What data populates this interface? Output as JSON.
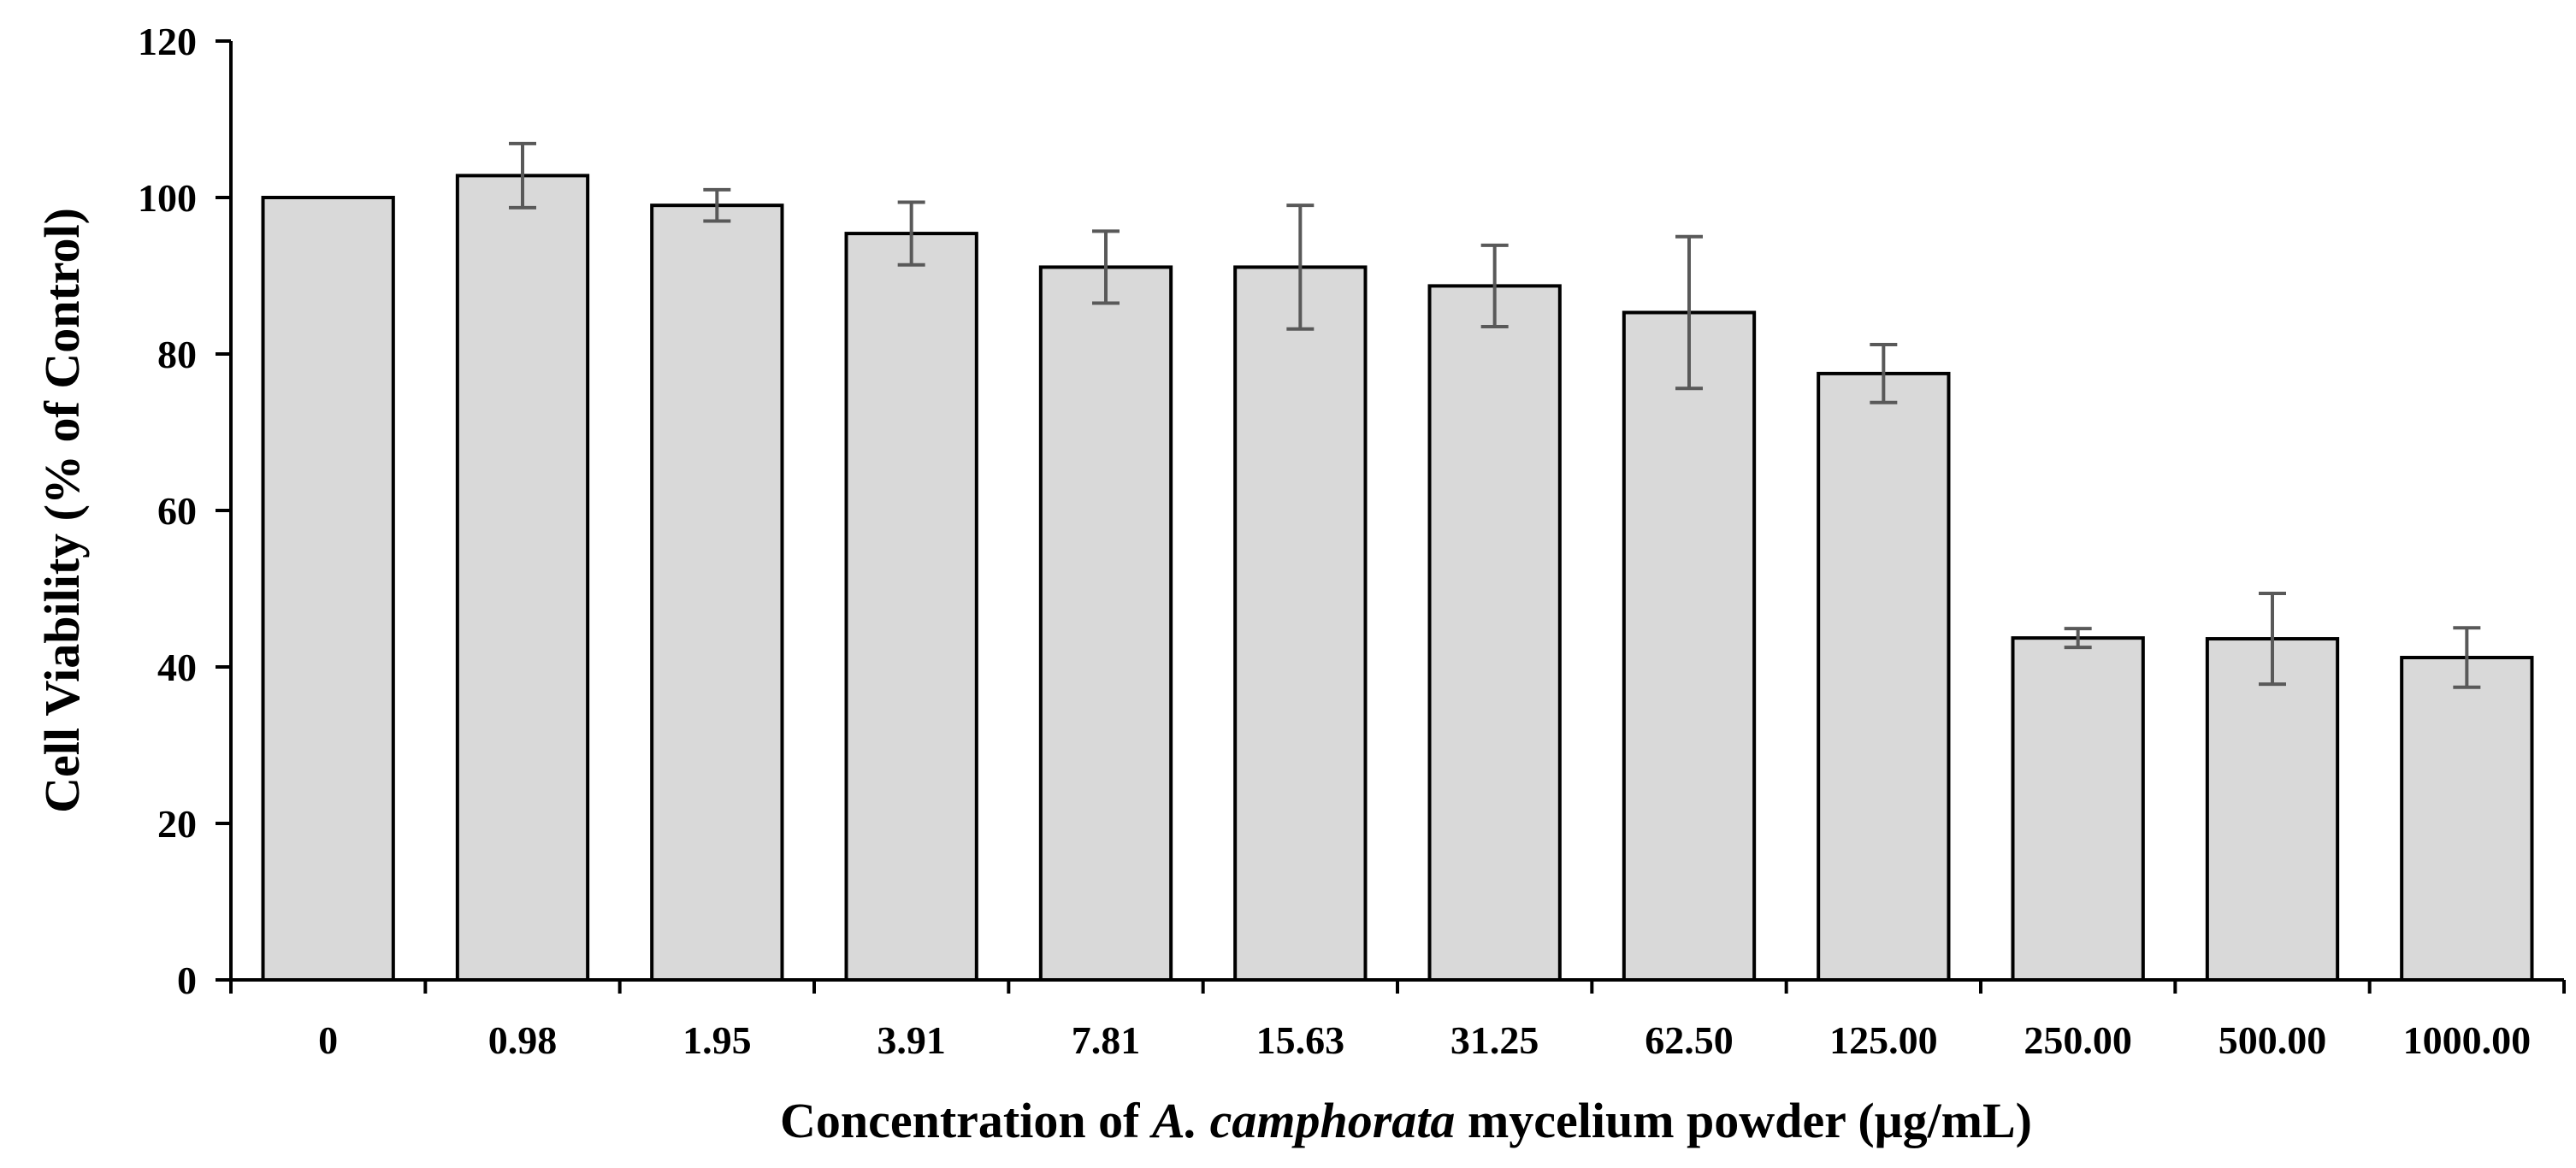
{
  "chart_data": {
    "type": "bar",
    "title": "",
    "xlabel": {
      "prefix": "Concentration of ",
      "italic": "A. camphorata",
      "suffix": " mycelium powder (μg/mL)"
    },
    "ylabel": "Cell Viability  (% of Control)",
    "categories": [
      "0",
      "0.98",
      "1.95",
      "3.91",
      "7.81",
      "15.63",
      "31.25",
      "62.50",
      "125.00",
      "250.00",
      "500.00",
      "1000.00"
    ],
    "values": [
      100,
      102.8,
      99,
      95.4,
      91.1,
      91.1,
      88.7,
      85.3,
      77.5,
      43.7,
      43.6,
      41.2
    ],
    "errors": [
      0,
      4.1,
      2.0,
      4.0,
      4.6,
      7.9,
      5.2,
      9.7,
      3.7,
      1.2,
      5.8,
      3.8
    ],
    "ylim": [
      0,
      120
    ],
    "yticks": [
      "0",
      "20",
      "40",
      "60",
      "80",
      "100",
      "120"
    ],
    "grid": false,
    "colors": {
      "bar_fill": "#d9d9d9",
      "bar_stroke": "#000000",
      "error_bar": "#595959",
      "axis": "#000000"
    }
  }
}
